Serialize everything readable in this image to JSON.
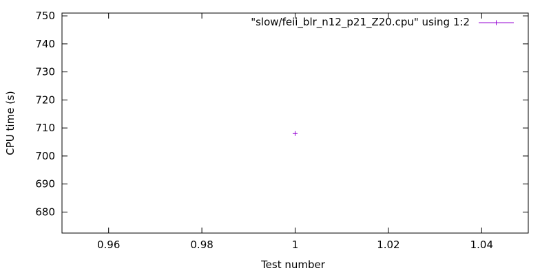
{
  "chart_data": {
    "type": "scatter",
    "title": "",
    "xlabel": "Test number",
    "ylabel": "CPU time (s)",
    "xlim": [
      0.95,
      1.05
    ],
    "ylim": [
      672.5,
      751
    ],
    "xticks": [
      0.96,
      0.98,
      1,
      1.02,
      1.04
    ],
    "xtick_labels": [
      "0.96",
      "0.98",
      "1",
      "1.02",
      "1.04"
    ],
    "yticks": [
      680,
      690,
      700,
      710,
      720,
      730,
      740,
      750
    ],
    "ytick_labels": [
      "680",
      "690",
      "700",
      "710",
      "720",
      "730",
      "740",
      "750"
    ],
    "grid": false,
    "legend_position": "top-right",
    "series": [
      {
        "name": "\"slow/feii_blr_n12_p21_Z20.cpu\" using 1:2",
        "color": "#9400d3",
        "marker": "plus",
        "x": [
          1
        ],
        "y": [
          708
        ]
      }
    ]
  }
}
